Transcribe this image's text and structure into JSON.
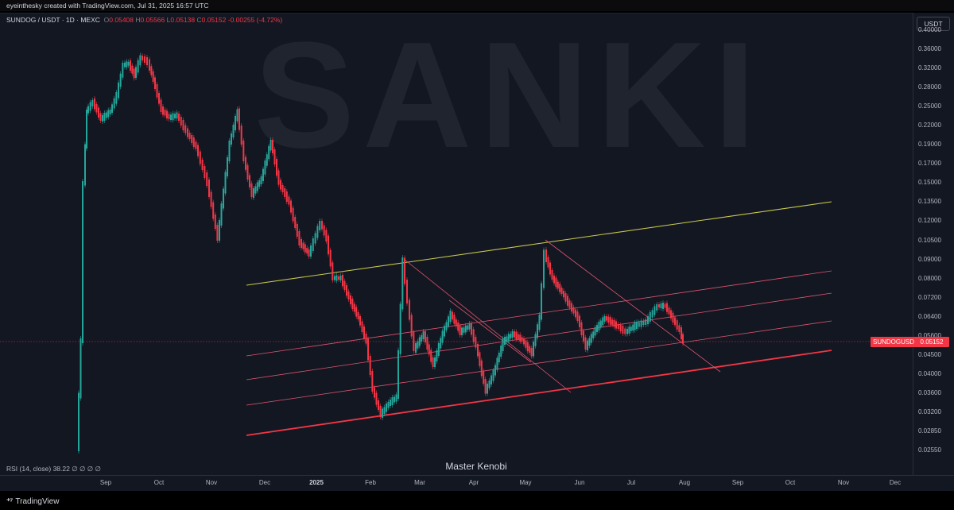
{
  "header": {
    "creator_line": "eyeinthesky created with TradingView.com, Jul 31, 2025 16:57 UTC"
  },
  "legend": {
    "symbol": "SUNDOG / USDT · 1D · MEXC",
    "open_label": "O",
    "open": "0.05408",
    "high_label": "H",
    "high": "0.05566",
    "low_label": "L",
    "low": "0.05138",
    "close_label": "C",
    "close": "0.05152",
    "change": "-0.00255 (-4.72%)"
  },
  "currency_button": "USDT",
  "y_axis": {
    "scale": "log",
    "ticks": [
      "0.40000",
      "0.36000",
      "0.32000",
      "0.28000",
      "0.25000",
      "0.22000",
      "0.19000",
      "0.17000",
      "0.15000",
      "0.13500",
      "0.12000",
      "0.10500",
      "0.09000",
      "0.08000",
      "0.07200",
      "0.06400",
      "0.05600",
      "0.04500",
      "0.04000",
      "0.03600",
      "0.03200",
      "0.02850",
      "0.02550"
    ]
  },
  "x_axis": {
    "ticks": [
      {
        "label": "Sep",
        "bold": false
      },
      {
        "label": "Oct",
        "bold": false
      },
      {
        "label": "Nov",
        "bold": false
      },
      {
        "label": "Dec",
        "bold": false
      },
      {
        "label": "2025",
        "bold": true
      },
      {
        "label": "Feb",
        "bold": false
      },
      {
        "label": "Mar",
        "bold": false
      },
      {
        "label": "Apr",
        "bold": false
      },
      {
        "label": "May",
        "bold": false
      },
      {
        "label": "Jun",
        "bold": false
      },
      {
        "label": "Jul",
        "bold": false
      },
      {
        "label": "Aug",
        "bold": false
      },
      {
        "label": "Sep",
        "bold": false
      },
      {
        "label": "Oct",
        "bold": false
      },
      {
        "label": "Nov",
        "bold": false
      },
      {
        "label": "Dec",
        "bold": false
      }
    ]
  },
  "last_price": {
    "symbol_label": "SUNDOGUSDT",
    "value": "0.05152"
  },
  "indicator": "RSI (14, close)  38.22  ∅  ∅  ∅  ∅",
  "center_caption": "Master Kenobi",
  "watermark_text": "SANKI",
  "footer_brand": "TradingView",
  "colors": {
    "up": "#26a69a",
    "down": "#f23645",
    "upper_trend": "#c9c94a",
    "channel": "#e0556e"
  }
}
